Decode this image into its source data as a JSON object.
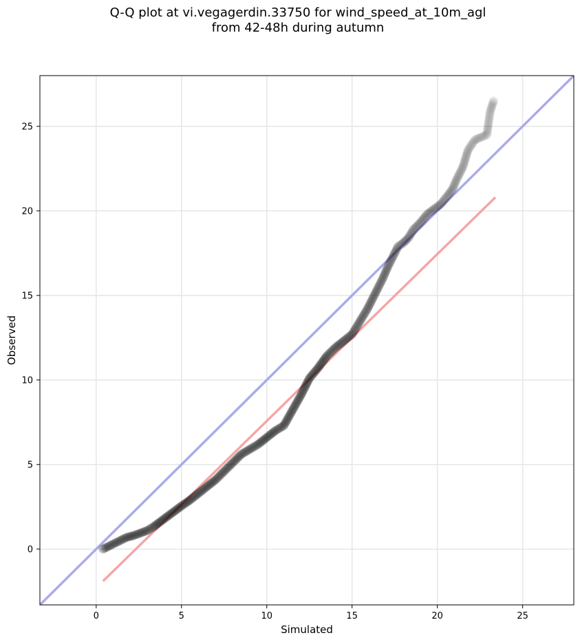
{
  "chart_data": {
    "type": "scatter",
    "title_line1": "Q-Q plot at vi.vegagerdin.33750 for wind_speed_at_10m_agl",
    "title_line2": "from 42-48h during autumn",
    "xlabel": "Simulated",
    "ylabel": "Observed",
    "xlim": [
      -3.3,
      28
    ],
    "ylim": [
      -3.3,
      28
    ],
    "xticks": [
      0,
      5,
      10,
      15,
      20,
      25
    ],
    "yticks": [
      0,
      5,
      10,
      15,
      20,
      25
    ],
    "xtick_labels": [
      "0",
      "5",
      "10",
      "15",
      "20",
      "25"
    ],
    "ytick_labels": [
      "0",
      "5",
      "10",
      "15",
      "20",
      "25"
    ],
    "grid": true,
    "reference_lines": [
      {
        "kind": "identity",
        "color": "#aaaaee",
        "x": [
          -3.3,
          28
        ],
        "y": [
          -3.3,
          28
        ]
      },
      {
        "kind": "fit",
        "color": "#f4a6a6",
        "x": [
          0.4,
          23.4
        ],
        "y": [
          -1.9,
          20.8
        ]
      }
    ],
    "point_color": "#000000",
    "series": [
      {
        "x": [
          0.4,
          0.6,
          0.9,
          1.2,
          1.5,
          1.8,
          2.2,
          2.6,
          3.0,
          3.4,
          3.8,
          4.2,
          4.6,
          5.0,
          5.5,
          6.0,
          6.5,
          7.0,
          7.5,
          8.0,
          8.5,
          9.0,
          9.5,
          10.0,
          10.5,
          11.0,
          11.5,
          12.0,
          12.5,
          13.0,
          13.5,
          14.0,
          14.5,
          15.0,
          15.3,
          15.6,
          15.9,
          16.2,
          16.5,
          16.8,
          17.1,
          17.4,
          17.7,
          18.0,
          18.3,
          18.6,
          19.0,
          19.4,
          19.8,
          20.2,
          20.6,
          20.9,
          21.1,
          21.5,
          21.8,
          22.2,
          22.9,
          23.1,
          23.3
        ],
        "y": [
          0.0,
          0.1,
          0.25,
          0.4,
          0.55,
          0.7,
          0.8,
          0.95,
          1.1,
          1.35,
          1.65,
          1.95,
          2.25,
          2.55,
          2.9,
          3.3,
          3.7,
          4.1,
          4.6,
          5.1,
          5.6,
          5.9,
          6.2,
          6.6,
          7.0,
          7.3,
          8.2,
          9.1,
          10.1,
          10.7,
          11.4,
          11.9,
          12.3,
          12.7,
          13.2,
          13.7,
          14.2,
          14.8,
          15.4,
          16.0,
          16.7,
          17.3,
          17.9,
          18.1,
          18.4,
          18.9,
          19.3,
          19.8,
          20.1,
          20.4,
          20.9,
          21.3,
          21.8,
          22.6,
          23.6,
          24.2,
          24.5,
          25.9,
          26.5
        ]
      }
    ]
  }
}
